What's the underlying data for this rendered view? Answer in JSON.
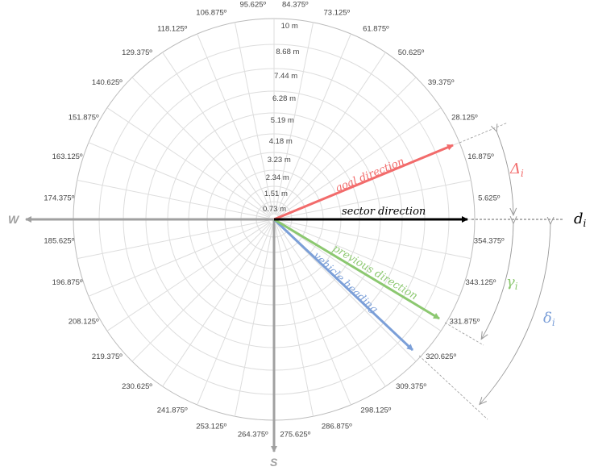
{
  "rings": [
    "0.73 m",
    "1.51 m",
    "2.34 m",
    "3.23 m",
    "4.18 m",
    "5.19 m",
    "6.28 m",
    "7.44 m",
    "8.68 m",
    "10 m"
  ],
  "sector_labels": [
    "5.625º",
    "16.875º",
    "28.125º",
    "39.375º",
    "50.625º",
    "61.875º",
    "73.125º",
    "84.375º",
    "95.625º",
    "106.875º",
    "118.125º",
    "129.375º",
    "140.625º",
    "151.875º",
    "163.125º",
    "174.375º",
    "185.625º",
    "196.875º",
    "208.125º",
    "219.375º",
    "230.625º",
    "241.875º",
    "253.125º",
    "264.375º",
    "275.625º",
    "286.875º",
    "298.125º",
    "309.375º",
    "320.625º",
    "331.875º",
    "343.125º",
    "354.375º"
  ],
  "compass": {
    "west": "W",
    "south": "S"
  },
  "arrows": {
    "goal": {
      "label": "goal direction",
      "color": "#f26b6b"
    },
    "sector": {
      "label": "sector direction",
      "color": "#000000"
    },
    "previous": {
      "label": "previous direction",
      "color": "#8cc870"
    },
    "vehicle": {
      "label": "vehicle heading",
      "color": "#7b9fd8"
    }
  },
  "symbols": {
    "d": "d",
    "d_sub": "i",
    "Delta": "Δ",
    "Delta_sub": "i",
    "gamma": "γ",
    "gamma_sub": "i",
    "delta": "δ",
    "delta_sub": "i"
  }
}
